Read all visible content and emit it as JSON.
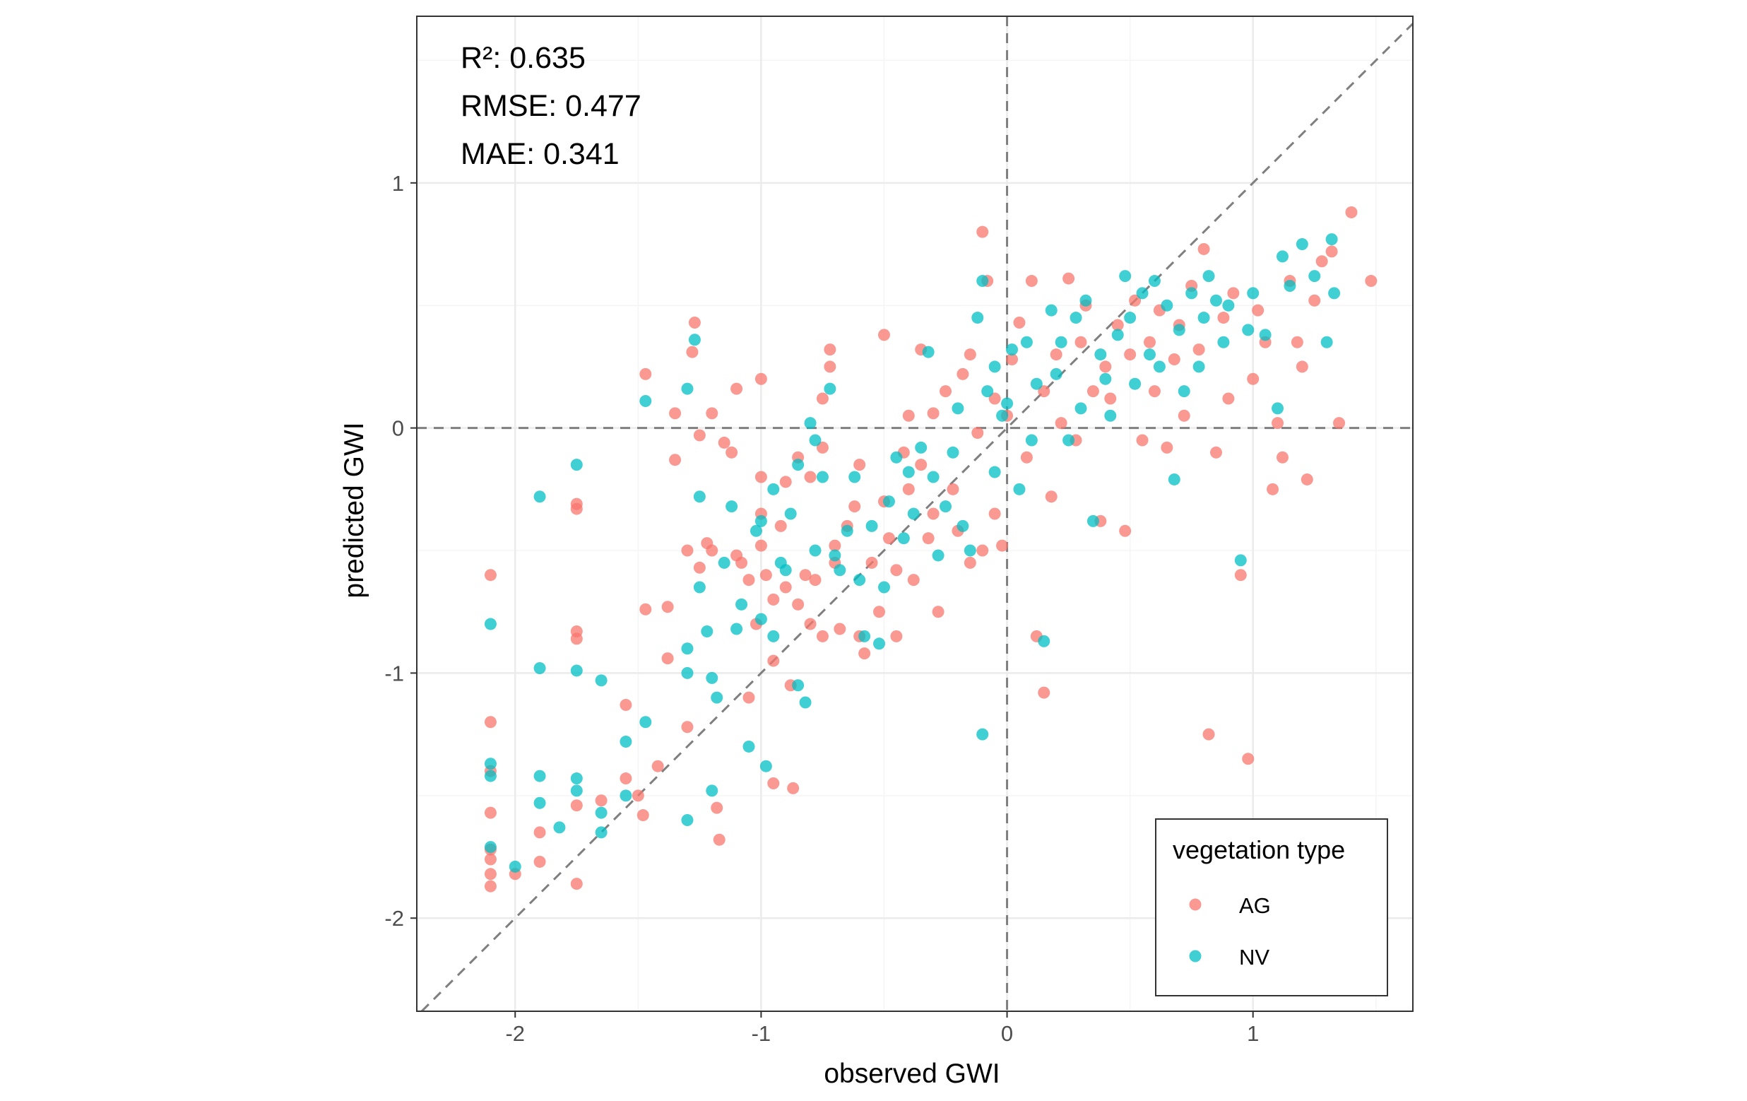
{
  "chart_data": {
    "type": "scatter",
    "xlabel": "observed GWI",
    "ylabel": "predicted GWI",
    "xlim": [
      -2.4,
      1.65
    ],
    "ylim": [
      -2.38,
      1.68
    ],
    "x_ticks": [
      -2,
      -1,
      0,
      1
    ],
    "y_ticks": [
      -2,
      -1,
      0,
      1
    ],
    "x_tick_labels": [
      "-2",
      "-1",
      "0",
      "1"
    ],
    "y_tick_labels": [
      "-2",
      "-1",
      "0",
      "1"
    ],
    "grid": true,
    "reference_lines": [
      "y = x (dashed)",
      "x = 0 (dashed)",
      "y = 0 (dashed)"
    ],
    "annotations": [
      "R²: 0.635",
      "RMSE: 0.477",
      "MAE: 0.341"
    ],
    "legend": {
      "title": "vegetation type",
      "position": "bottom-right"
    },
    "series": [
      {
        "name": "AG",
        "color": "#F8766D",
        "points": [
          [
            -2.1,
            -0.6
          ],
          [
            -2.1,
            -1.2
          ],
          [
            -2.1,
            -1.57
          ],
          [
            -2.1,
            -1.72
          ],
          [
            -2.1,
            -1.76
          ],
          [
            -2.1,
            -1.82
          ],
          [
            -2.1,
            -1.87
          ],
          [
            -2.1,
            -1.4
          ],
          [
            -2.0,
            -1.82
          ],
          [
            -1.9,
            -1.65
          ],
          [
            -1.9,
            -1.77
          ],
          [
            -1.75,
            -0.31
          ],
          [
            -1.75,
            -0.33
          ],
          [
            -1.75,
            -0.83
          ],
          [
            -1.75,
            -0.86
          ],
          [
            -1.75,
            -1.54
          ],
          [
            -1.75,
            -1.86
          ],
          [
            -1.65,
            -1.52
          ],
          [
            -1.55,
            -1.13
          ],
          [
            -1.55,
            -1.43
          ],
          [
            -1.5,
            -1.5
          ],
          [
            -1.48,
            -1.58
          ],
          [
            -1.47,
            0.22
          ],
          [
            -1.47,
            -0.74
          ],
          [
            -1.42,
            -1.38
          ],
          [
            -1.38,
            -0.73
          ],
          [
            -1.38,
            -0.94
          ],
          [
            -1.35,
            0.06
          ],
          [
            -1.35,
            -0.13
          ],
          [
            -1.3,
            -0.5
          ],
          [
            -1.3,
            -1.22
          ],
          [
            -1.28,
            0.31
          ],
          [
            -1.27,
            0.43
          ],
          [
            -1.25,
            -0.03
          ],
          [
            -1.25,
            -0.57
          ],
          [
            -1.22,
            -0.47
          ],
          [
            -1.2,
            -0.5
          ],
          [
            -1.2,
            0.06
          ],
          [
            -1.18,
            -1.55
          ],
          [
            -1.17,
            -1.68
          ],
          [
            -1.15,
            -0.06
          ],
          [
            -1.12,
            -0.1
          ],
          [
            -1.1,
            0.16
          ],
          [
            -1.1,
            -0.52
          ],
          [
            -1.08,
            -0.55
          ],
          [
            -1.05,
            -1.1
          ],
          [
            -1.05,
            -0.62
          ],
          [
            -1.02,
            -0.8
          ],
          [
            -1.0,
            0.2
          ],
          [
            -1.0,
            -0.2
          ],
          [
            -1.0,
            -0.35
          ],
          [
            -1.0,
            -0.48
          ],
          [
            -0.98,
            -0.6
          ],
          [
            -0.95,
            -0.7
          ],
          [
            -0.95,
            -0.95
          ],
          [
            -0.95,
            -1.45
          ],
          [
            -0.92,
            -0.4
          ],
          [
            -0.9,
            -0.22
          ],
          [
            -0.9,
            -0.65
          ],
          [
            -0.88,
            -1.05
          ],
          [
            -0.87,
            -1.47
          ],
          [
            -0.85,
            -0.12
          ],
          [
            -0.85,
            -0.72
          ],
          [
            -0.82,
            -0.6
          ],
          [
            -0.8,
            -0.2
          ],
          [
            -0.8,
            -0.8
          ],
          [
            -0.78,
            -0.62
          ],
          [
            -0.75,
            0.12
          ],
          [
            -0.75,
            -0.08
          ],
          [
            -0.75,
            -0.85
          ],
          [
            -0.72,
            0.32
          ],
          [
            -0.72,
            0.25
          ],
          [
            -0.7,
            -0.48
          ],
          [
            -0.7,
            -0.55
          ],
          [
            -0.68,
            -0.82
          ],
          [
            -0.65,
            -0.4
          ],
          [
            -0.62,
            -0.32
          ],
          [
            -0.6,
            -0.15
          ],
          [
            -0.6,
            -0.85
          ],
          [
            -0.58,
            -0.92
          ],
          [
            -0.55,
            -0.55
          ],
          [
            -0.52,
            -0.75
          ],
          [
            -0.5,
            0.38
          ],
          [
            -0.5,
            -0.3
          ],
          [
            -0.48,
            -0.45
          ],
          [
            -0.45,
            -0.58
          ],
          [
            -0.45,
            -0.85
          ],
          [
            -0.42,
            -0.1
          ],
          [
            -0.4,
            0.05
          ],
          [
            -0.4,
            -0.25
          ],
          [
            -0.38,
            -0.62
          ],
          [
            -0.35,
            0.32
          ],
          [
            -0.35,
            -0.15
          ],
          [
            -0.32,
            -0.45
          ],
          [
            -0.3,
            0.06
          ],
          [
            -0.3,
            -0.35
          ],
          [
            -0.28,
            -0.75
          ],
          [
            -0.25,
            0.15
          ],
          [
            -0.22,
            -0.25
          ],
          [
            -0.2,
            -0.42
          ],
          [
            -0.18,
            0.22
          ],
          [
            -0.15,
            0.3
          ],
          [
            -0.15,
            -0.55
          ],
          [
            -0.12,
            -0.02
          ],
          [
            -0.1,
            0.8
          ],
          [
            -0.1,
            -0.5
          ],
          [
            -0.08,
            0.6
          ],
          [
            -0.05,
            0.12
          ],
          [
            -0.05,
            -0.35
          ],
          [
            -0.02,
            -0.48
          ],
          [
            0.0,
            0.05
          ],
          [
            0.02,
            0.28
          ],
          [
            0.05,
            0.43
          ],
          [
            0.08,
            -0.12
          ],
          [
            0.1,
            0.6
          ],
          [
            0.12,
            -0.85
          ],
          [
            0.15,
            -1.08
          ],
          [
            0.15,
            0.15
          ],
          [
            0.18,
            -0.28
          ],
          [
            0.2,
            0.3
          ],
          [
            0.22,
            0.02
          ],
          [
            0.25,
            0.61
          ],
          [
            0.28,
            -0.05
          ],
          [
            0.3,
            0.35
          ],
          [
            0.32,
            0.5
          ],
          [
            0.35,
            0.15
          ],
          [
            0.38,
            -0.38
          ],
          [
            0.4,
            0.25
          ],
          [
            0.42,
            0.12
          ],
          [
            0.45,
            0.42
          ],
          [
            0.48,
            -0.42
          ],
          [
            0.5,
            0.3
          ],
          [
            0.52,
            0.52
          ],
          [
            0.55,
            -0.05
          ],
          [
            0.58,
            0.35
          ],
          [
            0.6,
            0.15
          ],
          [
            0.62,
            0.48
          ],
          [
            0.65,
            -0.08
          ],
          [
            0.68,
            0.28
          ],
          [
            0.7,
            0.42
          ],
          [
            0.72,
            0.05
          ],
          [
            0.75,
            0.58
          ],
          [
            0.78,
            0.32
          ],
          [
            0.8,
            0.73
          ],
          [
            0.82,
            -1.25
          ],
          [
            0.85,
            -0.1
          ],
          [
            0.88,
            0.45
          ],
          [
            0.9,
            0.12
          ],
          [
            0.92,
            0.55
          ],
          [
            0.95,
            -0.6
          ],
          [
            0.98,
            -1.35
          ],
          [
            1.0,
            0.2
          ],
          [
            1.02,
            0.48
          ],
          [
            1.05,
            0.35
          ],
          [
            1.08,
            -0.25
          ],
          [
            1.1,
            0.02
          ],
          [
            1.12,
            -0.12
          ],
          [
            1.15,
            0.6
          ],
          [
            1.18,
            0.35
          ],
          [
            1.2,
            0.25
          ],
          [
            1.22,
            -0.21
          ],
          [
            1.25,
            0.52
          ],
          [
            1.28,
            0.68
          ],
          [
            1.32,
            0.72
          ],
          [
            1.35,
            0.02
          ],
          [
            1.4,
            0.88
          ],
          [
            1.48,
            0.6
          ]
        ]
      },
      {
        "name": "NV",
        "color": "#00BFC4",
        "points": [
          [
            -2.1,
            -0.8
          ],
          [
            -2.1,
            -1.37
          ],
          [
            -2.1,
            -1.42
          ],
          [
            -2.1,
            -1.71
          ],
          [
            -2.0,
            -1.79
          ],
          [
            -1.9,
            -0.28
          ],
          [
            -1.9,
            -0.98
          ],
          [
            -1.9,
            -1.42
          ],
          [
            -1.9,
            -1.53
          ],
          [
            -1.82,
            -1.63
          ],
          [
            -1.75,
            -0.15
          ],
          [
            -1.75,
            -0.99
          ],
          [
            -1.75,
            -1.43
          ],
          [
            -1.75,
            -1.48
          ],
          [
            -1.65,
            -1.03
          ],
          [
            -1.65,
            -1.57
          ],
          [
            -1.65,
            -1.65
          ],
          [
            -1.55,
            -1.28
          ],
          [
            -1.55,
            -1.5
          ],
          [
            -1.47,
            0.11
          ],
          [
            -1.47,
            -1.2
          ],
          [
            -1.3,
            0.16
          ],
          [
            -1.3,
            -0.9
          ],
          [
            -1.3,
            -1.0
          ],
          [
            -1.3,
            -1.6
          ],
          [
            -1.27,
            0.36
          ],
          [
            -1.25,
            -0.28
          ],
          [
            -1.25,
            -0.65
          ],
          [
            -1.22,
            -0.83
          ],
          [
            -1.2,
            -1.02
          ],
          [
            -1.2,
            -1.48
          ],
          [
            -1.18,
            -1.1
          ],
          [
            -1.15,
            -0.55
          ],
          [
            -1.12,
            -0.32
          ],
          [
            -1.1,
            -0.82
          ],
          [
            -1.08,
            -0.72
          ],
          [
            -1.05,
            -1.3
          ],
          [
            -1.02,
            -0.42
          ],
          [
            -1.0,
            -0.38
          ],
          [
            -1.0,
            -0.78
          ],
          [
            -0.98,
            -1.38
          ],
          [
            -0.95,
            -0.25
          ],
          [
            -0.95,
            -0.85
          ],
          [
            -0.92,
            -0.55
          ],
          [
            -0.9,
            -0.58
          ],
          [
            -0.88,
            -0.35
          ],
          [
            -0.85,
            -1.05
          ],
          [
            -0.85,
            -0.15
          ],
          [
            -0.82,
            -1.12
          ],
          [
            -0.8,
            0.02
          ],
          [
            -0.78,
            -0.05
          ],
          [
            -0.78,
            -0.5
          ],
          [
            -0.75,
            -0.2
          ],
          [
            -0.72,
            0.16
          ],
          [
            -0.7,
            -0.52
          ],
          [
            -0.68,
            -0.58
          ],
          [
            -0.65,
            -0.42
          ],
          [
            -0.62,
            -0.2
          ],
          [
            -0.6,
            -0.62
          ],
          [
            -0.58,
            -0.85
          ],
          [
            -0.55,
            -0.4
          ],
          [
            -0.52,
            -0.88
          ],
          [
            -0.5,
            -0.65
          ],
          [
            -0.48,
            -0.3
          ],
          [
            -0.45,
            -0.12
          ],
          [
            -0.42,
            -0.45
          ],
          [
            -0.4,
            -0.18
          ],
          [
            -0.38,
            -0.35
          ],
          [
            -0.35,
            -0.08
          ],
          [
            -0.32,
            0.31
          ],
          [
            -0.3,
            -0.2
          ],
          [
            -0.28,
            -0.52
          ],
          [
            -0.25,
            -0.32
          ],
          [
            -0.22,
            -0.1
          ],
          [
            -0.2,
            0.08
          ],
          [
            -0.18,
            -0.4
          ],
          [
            -0.15,
            -0.5
          ],
          [
            -0.12,
            0.45
          ],
          [
            -0.1,
            0.6
          ],
          [
            -0.1,
            -1.25
          ],
          [
            -0.08,
            0.15
          ],
          [
            -0.05,
            0.25
          ],
          [
            -0.05,
            -0.18
          ],
          [
            -0.02,
            0.05
          ],
          [
            0.0,
            0.1
          ],
          [
            0.02,
            0.32
          ],
          [
            0.05,
            -0.25
          ],
          [
            0.08,
            0.35
          ],
          [
            0.1,
            -0.05
          ],
          [
            0.12,
            0.18
          ],
          [
            0.15,
            -0.87
          ],
          [
            0.18,
            0.48
          ],
          [
            0.2,
            0.22
          ],
          [
            0.22,
            0.35
          ],
          [
            0.25,
            -0.05
          ],
          [
            0.28,
            0.45
          ],
          [
            0.3,
            0.08
          ],
          [
            0.32,
            0.52
          ],
          [
            0.35,
            -0.38
          ],
          [
            0.38,
            0.3
          ],
          [
            0.4,
            0.2
          ],
          [
            0.42,
            0.05
          ],
          [
            0.45,
            0.38
          ],
          [
            0.48,
            0.62
          ],
          [
            0.5,
            0.45
          ],
          [
            0.52,
            0.18
          ],
          [
            0.55,
            0.55
          ],
          [
            0.58,
            0.3
          ],
          [
            0.6,
            0.6
          ],
          [
            0.62,
            0.25
          ],
          [
            0.65,
            0.5
          ],
          [
            0.68,
            -0.21
          ],
          [
            0.7,
            0.4
          ],
          [
            0.72,
            0.15
          ],
          [
            0.75,
            0.55
          ],
          [
            0.78,
            0.25
          ],
          [
            0.8,
            0.45
          ],
          [
            0.82,
            0.62
          ],
          [
            0.85,
            0.52
          ],
          [
            0.88,
            0.35
          ],
          [
            0.9,
            0.5
          ],
          [
            0.95,
            -0.54
          ],
          [
            0.98,
            0.4
          ],
          [
            1.0,
            0.55
          ],
          [
            1.05,
            0.38
          ],
          [
            1.1,
            0.08
          ],
          [
            1.12,
            0.7
          ],
          [
            1.15,
            0.58
          ],
          [
            1.2,
            0.75
          ],
          [
            1.25,
            0.62
          ],
          [
            1.3,
            0.35
          ],
          [
            1.32,
            0.77
          ],
          [
            1.33,
            0.55
          ]
        ]
      }
    ]
  }
}
